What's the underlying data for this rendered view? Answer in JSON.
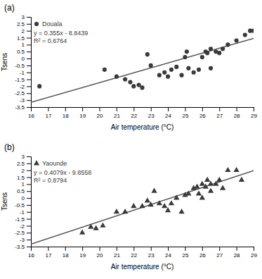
{
  "chart_data": [
    {
      "type": "scatter",
      "title": "(a)",
      "x_label": "Air temperature (°C)",
      "y_label": "Tsens",
      "annotations": [
        "y = 0.355x - 8.8439",
        "R² = 0.6764"
      ],
      "legend": "upper left",
      "xlim": [
        16,
        29
      ],
      "ylim": [
        -3.5,
        3
      ],
      "xticks": [
        16,
        17,
        18,
        19,
        20,
        21,
        22,
        23,
        24,
        25,
        26,
        27,
        28,
        29
      ],
      "yticks": [
        -3.5,
        -3,
        -2.5,
        -2,
        -1.5,
        -1,
        -0.5,
        0,
        0.5,
        1,
        1.5,
        2,
        2.5,
        3
      ],
      "series": [
        {
          "name": "Douala",
          "type": "scatter",
          "marker": "circle",
          "color": "#3a3a3a",
          "x": [
            16.5,
            20.3,
            21.0,
            21.5,
            21.8,
            22.0,
            22.3,
            22.5,
            22.8,
            23.0,
            23.5,
            23.8,
            24.0,
            24.2,
            24.5,
            24.8,
            25.0,
            25.1,
            25.2,
            25.5,
            25.8,
            26.0,
            26.2,
            26.3,
            26.5,
            26.5,
            26.8,
            27.0,
            27.2,
            27.5,
            28.0,
            28.5,
            28.8,
            29.0
          ],
          "values": [
            -2.0,
            -0.8,
            -1.3,
            -1.5,
            -1.7,
            -2.0,
            -1.9,
            -2.1,
            0.3,
            -0.5,
            -1.2,
            -1.0,
            -1.3,
            -0.8,
            -0.6,
            -1.2,
            0.1,
            0.5,
            -0.7,
            -1.0,
            -0.8,
            0.1,
            0.5,
            0.4,
            0.7,
            -0.7,
            0.5,
            0.4,
            0.7,
            1.0,
            1.3,
            1.7,
            2.0,
            2.0
          ]
        },
        {
          "type": "line",
          "color": "#555555",
          "x": [
            16,
            29
          ],
          "values": [
            -3.1639,
            1.4511
          ]
        }
      ]
    },
    {
      "type": "scatter",
      "title": "(b)",
      "x_label": "Air temperature (°C)",
      "y_label": "Tsens",
      "annotations": [
        "y = 0.4079x - 9.8558",
        "R² = 0.8794"
      ],
      "legend": "upper left",
      "xlim": [
        16,
        29
      ],
      "ylim": [
        -3.5,
        3
      ],
      "xticks": [
        16,
        17,
        18,
        19,
        20,
        21,
        22,
        23,
        24,
        25,
        26,
        27,
        28,
        29
      ],
      "yticks": [
        -3.5,
        -3,
        -2.5,
        -2,
        -1.5,
        -1,
        -0.5,
        0,
        0.5,
        1,
        1.5,
        2,
        2.5,
        3
      ],
      "series": [
        {
          "name": "Yaounde",
          "type": "scatter",
          "marker": "triangle",
          "color": "#3a3a3a",
          "x": [
            19.0,
            19.5,
            19.8,
            20.2,
            21.0,
            21.5,
            22.0,
            22.5,
            22.8,
            23.0,
            23.2,
            23.5,
            23.8,
            24.0,
            24.2,
            24.5,
            24.8,
            25.0,
            25.2,
            25.5,
            25.7,
            25.8,
            26.0,
            26.0,
            26.2,
            26.3,
            26.5,
            26.5,
            26.8,
            27.0,
            27.2,
            27.5,
            28.0,
            28.3
          ],
          "values": [
            -2.5,
            -2.1,
            -2.2,
            -2.0,
            -1.0,
            -1.0,
            -0.6,
            -0.6,
            -0.2,
            -0.5,
            0.5,
            -0.4,
            -0.6,
            -0.9,
            -0.4,
            0.0,
            -1.0,
            0.2,
            0.3,
            0.7,
            0.8,
            0.3,
            1.0,
            0.0,
            0.8,
            1.3,
            0.5,
            1.0,
            1.0,
            1.3,
            0.7,
            2.0,
            2.0,
            1.3
          ]
        },
        {
          "type": "line",
          "color": "#555555",
          "x": [
            16,
            29
          ],
          "values": [
            -3.3294,
            1.9733
          ]
        }
      ]
    }
  ]
}
